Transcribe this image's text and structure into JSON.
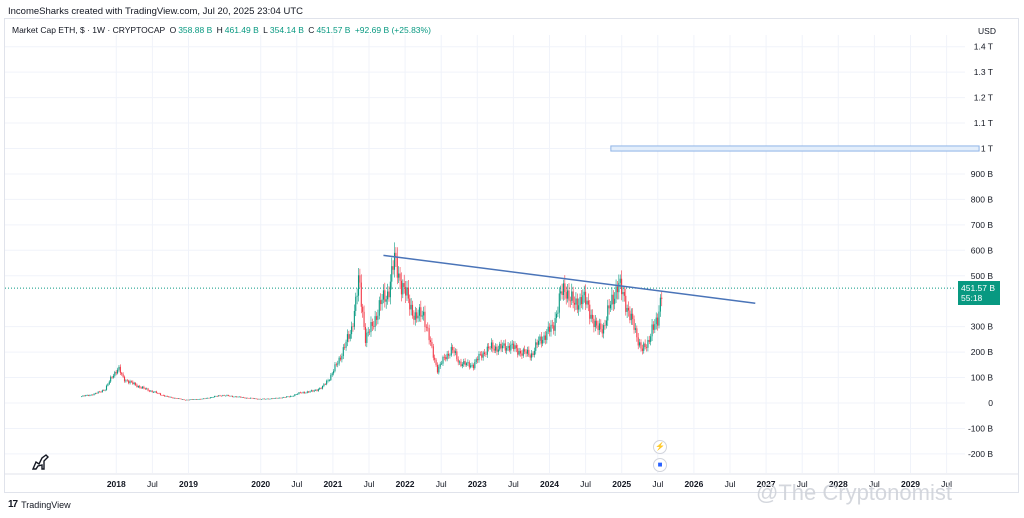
{
  "header": {
    "creator_line": "IncomeSharks created with TradingView.com, Jul 20, 2025 23:04 UTC",
    "symbol": "Market Cap ETH, $ · 1W · CRYPTOCAP",
    "open_label": "O",
    "open_value": "358.88 B",
    "high_label": "H",
    "high_value": "461.49 B",
    "low_label": "L",
    "low_value": "354.14 B",
    "close_label": "C",
    "close_value": "451.57 B",
    "change": "+92.69 B (+25.83%)",
    "currency": "USD"
  },
  "price_tag": {
    "value": "451.57 B",
    "countdown": "55:18"
  },
  "footer": {
    "brand": "TradingView",
    "watermark": "@The Cryptonomist"
  },
  "colors": {
    "up": "#089981",
    "down": "#f23645",
    "trendline": "#4a74b8",
    "box": "#8fb4e6"
  },
  "chart_data": {
    "type": "candlestick",
    "title": "Market Cap ETH, $ · 1W · CRYPTOCAP",
    "y_unit": "USD",
    "y_ticks": [
      {
        "v": 1400,
        "label": "1.4 T"
      },
      {
        "v": 1300,
        "label": "1.3 T"
      },
      {
        "v": 1200,
        "label": "1.2 T"
      },
      {
        "v": 1100,
        "label": "1.1 T"
      },
      {
        "v": 1000,
        "label": "1 T"
      },
      {
        "v": 900,
        "label": "900 B"
      },
      {
        "v": 800,
        "label": "800 B"
      },
      {
        "v": 700,
        "label": "700 B"
      },
      {
        "v": 600,
        "label": "600 B"
      },
      {
        "v": 500,
        "label": "500 B"
      },
      {
        "v": 300,
        "label": "300 B"
      },
      {
        "v": 200,
        "label": "200 B"
      },
      {
        "v": 100,
        "label": "100 B"
      },
      {
        "v": 0,
        "label": "0"
      },
      {
        "v": -100,
        "label": "-100 B"
      },
      {
        "v": -200,
        "label": "-200 B"
      }
    ],
    "ylim": [
      -200,
      1400
    ],
    "x_ticks": [
      {
        "t": 2018.0,
        "label": "2018",
        "bold": true
      },
      {
        "t": 2018.5,
        "label": "Jul"
      },
      {
        "t": 2019.0,
        "label": "2019",
        "bold": true
      },
      {
        "t": 2020.0,
        "label": "2020",
        "bold": true
      },
      {
        "t": 2020.5,
        "label": "Jul"
      },
      {
        "t": 2021.0,
        "label": "2021",
        "bold": true
      },
      {
        "t": 2021.5,
        "label": "Jul"
      },
      {
        "t": 2022.0,
        "label": "2022",
        "bold": true
      },
      {
        "t": 2022.5,
        "label": "Jul"
      },
      {
        "t": 2023.0,
        "label": "2023",
        "bold": true
      },
      {
        "t": 2023.5,
        "label": "Jul"
      },
      {
        "t": 2024.0,
        "label": "2024",
        "bold": true
      },
      {
        "t": 2024.5,
        "label": "Jul"
      },
      {
        "t": 2025.0,
        "label": "2025",
        "bold": true
      },
      {
        "t": 2025.5,
        "label": "Jul"
      },
      {
        "t": 2026.0,
        "label": "2026",
        "bold": true
      },
      {
        "t": 2026.5,
        "label": "Jul"
      },
      {
        "t": 2027.0,
        "label": "2027",
        "bold": true
      },
      {
        "t": 2027.5,
        "label": "Jul"
      },
      {
        "t": 2028.0,
        "label": "2028",
        "bold": true
      },
      {
        "t": 2028.5,
        "label": "Jul"
      },
      {
        "t": 2029.0,
        "label": "2029",
        "bold": true
      },
      {
        "t": 2029.5,
        "label": "Jul"
      }
    ],
    "xlim": [
      2016.5,
      2030.0
    ],
    "price_path": [
      [
        2017.5,
        25
      ],
      [
        2017.7,
        35
      ],
      [
        2017.85,
        55
      ],
      [
        2017.95,
        110
      ],
      [
        2018.03,
        135
      ],
      [
        2018.1,
        95
      ],
      [
        2018.2,
        80
      ],
      [
        2018.35,
        60
      ],
      [
        2018.5,
        45
      ],
      [
        2018.7,
        25
      ],
      [
        2018.95,
        12
      ],
      [
        2019.2,
        16
      ],
      [
        2019.45,
        30
      ],
      [
        2019.55,
        28
      ],
      [
        2019.8,
        20
      ],
      [
        2020.0,
        15
      ],
      [
        2020.2,
        18
      ],
      [
        2020.4,
        25
      ],
      [
        2020.55,
        40
      ],
      [
        2020.7,
        45
      ],
      [
        2020.85,
        60
      ],
      [
        2020.98,
        110
      ],
      [
        2021.1,
        180
      ],
      [
        2021.25,
        280
      ],
      [
        2021.36,
        480
      ],
      [
        2021.45,
        260
      ],
      [
        2021.55,
        300
      ],
      [
        2021.65,
        390
      ],
      [
        2021.75,
        420
      ],
      [
        2021.85,
        560
      ],
      [
        2021.95,
        470
      ],
      [
        2022.05,
        400
      ],
      [
        2022.15,
        330
      ],
      [
        2022.25,
        360
      ],
      [
        2022.35,
        230
      ],
      [
        2022.45,
        130
      ],
      [
        2022.55,
        180
      ],
      [
        2022.65,
        210
      ],
      [
        2022.75,
        160
      ],
      [
        2022.85,
        150
      ],
      [
        2022.95,
        150
      ],
      [
        2023.05,
        190
      ],
      [
        2023.2,
        220
      ],
      [
        2023.3,
        215
      ],
      [
        2023.45,
        225
      ],
      [
        2023.6,
        200
      ],
      [
        2023.75,
        190
      ],
      [
        2023.85,
        240
      ],
      [
        2023.95,
        270
      ],
      [
        2024.05,
        300
      ],
      [
        2024.15,
        420
      ],
      [
        2024.22,
        450
      ],
      [
        2024.35,
        380
      ],
      [
        2024.45,
        420
      ],
      [
        2024.55,
        370
      ],
      [
        2024.65,
        290
      ],
      [
        2024.75,
        300
      ],
      [
        2024.85,
        390
      ],
      [
        2024.95,
        470
      ],
      [
        2025.05,
        400
      ],
      [
        2025.12,
        340
      ],
      [
        2025.2,
        270
      ],
      [
        2025.28,
        210
      ],
      [
        2025.35,
        220
      ],
      [
        2025.42,
        300
      ],
      [
        2025.5,
        310
      ],
      [
        2025.555,
        452
      ]
    ],
    "trendline": {
      "from": [
        2021.7,
        580
      ],
      "to": [
        2026.85,
        392
      ]
    },
    "target_box": {
      "t1": 2024.85,
      "t2": 2029.95,
      "v1": 990,
      "v2": 1010
    },
    "current_price_line": 451.57
  }
}
